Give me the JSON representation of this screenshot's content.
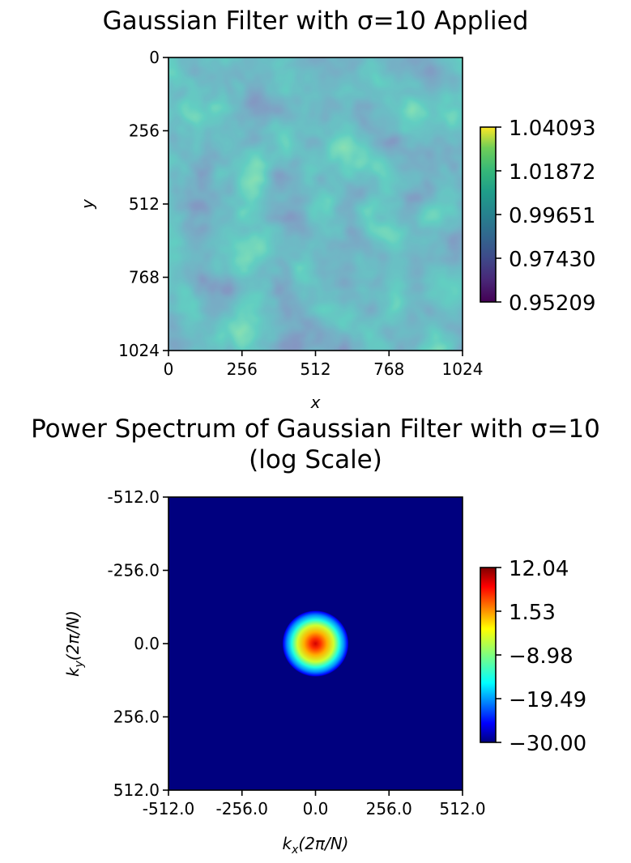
{
  "chart_data": [
    {
      "type": "heatmap",
      "title": "Gaussian Filter with σ=10 Applied",
      "xlabel": "x",
      "ylabel": "y",
      "xlim": [
        0,
        1024
      ],
      "ylim": [
        1024,
        0
      ],
      "xticks": [
        0,
        256,
        512,
        768,
        1024
      ],
      "xtick_labels": [
        "0",
        "256",
        "512",
        "768",
        "1024"
      ],
      "yticks": [
        0,
        256,
        512,
        768,
        1024
      ],
      "ytick_labels": [
        "0",
        "256",
        "512",
        "768",
        "1024"
      ],
      "colormap": "viridis",
      "colorbar": {
        "min": 0.95209,
        "max": 1.04093,
        "ticks": [
          0.95209,
          0.9743,
          0.99651,
          1.01872,
          1.04093
        ],
        "tick_labels": [
          "0.95209",
          "0.97430",
          "0.99651",
          "1.01872",
          "1.04093"
        ]
      },
      "description_values": "random smooth field, values between 0.95209 and 1.04093"
    },
    {
      "type": "heatmap",
      "title_line1": "Power Spectrum of Gaussian Filter with σ=10",
      "title_line2": "(log Scale)",
      "xlabel": "k_x(2π/N)",
      "xlabel_main": "k",
      "xlabel_sub": "x",
      "xlabel_rest": "(2π/N)",
      "ylabel_main": "k",
      "ylabel_sub": "y",
      "ylabel_rest": "(2π/N)",
      "xlim": [
        -512,
        512
      ],
      "ylim": [
        512,
        -512
      ],
      "xticks": [
        -512,
        -256,
        0,
        256,
        512
      ],
      "xtick_labels": [
        "-512.0",
        "-256.0",
        "0.0",
        "256.0",
        "512.0"
      ],
      "yticks": [
        -512,
        -256,
        0,
        256,
        512
      ],
      "ytick_labels": [
        "-512.0",
        "-256.0",
        "0.0",
        "256.0",
        "512.0"
      ],
      "colormap": "jet",
      "colorbar": {
        "min": -30.0,
        "max": 12.04,
        "ticks": [
          -30.0,
          -19.49,
          -8.98,
          1.53,
          12.04
        ],
        "tick_labels": [
          "−30.00",
          "−19.49",
          "−8.98",
          "1.53",
          "12.04"
        ]
      },
      "blob_radius_k": 115,
      "blob_center_k": [
        0,
        0
      ]
    }
  ]
}
